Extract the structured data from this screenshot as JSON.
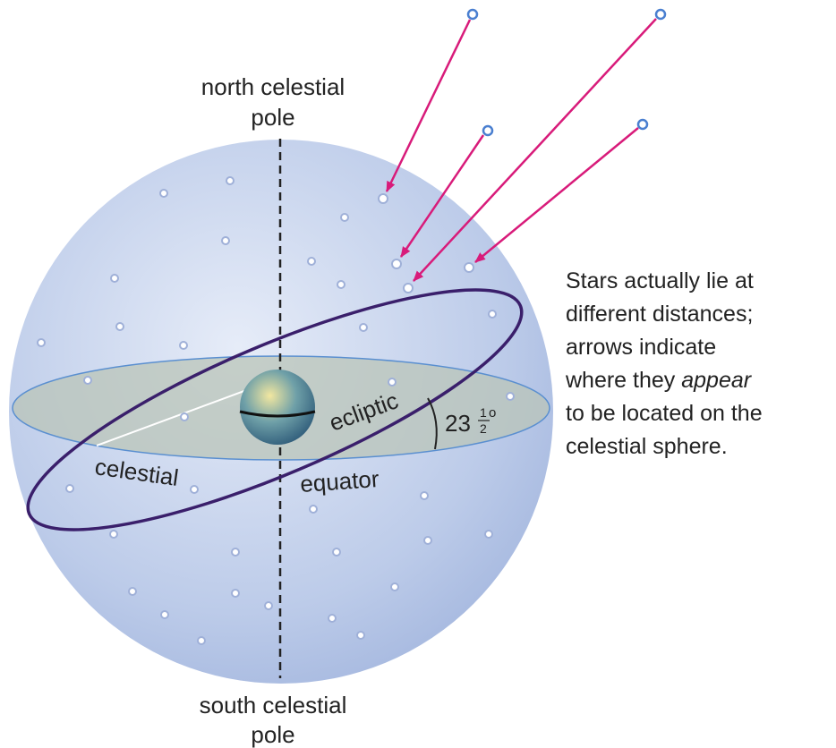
{
  "north_pole_label": [
    "north celestial",
    "pole"
  ],
  "south_pole_label": [
    "south celestial",
    "pole"
  ],
  "ecliptic_label": "ecliptic",
  "equator_label": [
    "celestial",
    "equator"
  ],
  "angle_label": {
    "whole": "23",
    "numerator": "1",
    "denominator": "2",
    "degree": "o"
  },
  "caption": [
    "Stars actually lie at",
    "different distances;",
    "arrows indicate",
    "where they",
    "appear",
    "to be located on the",
    "celestial sphere."
  ]
}
